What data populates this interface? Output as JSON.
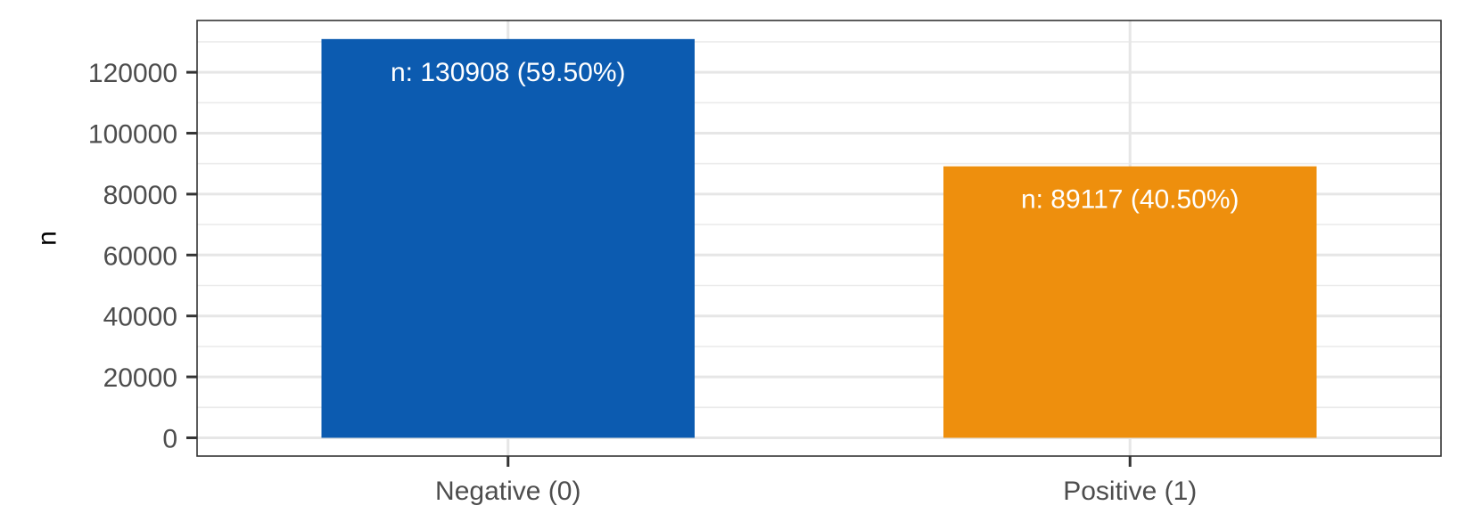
{
  "chart_data": {
    "type": "bar",
    "title": "",
    "xlabel": "",
    "ylabel": "n",
    "categories": [
      "Negative (0)",
      "Positive (1)"
    ],
    "values": [
      130908,
      89117
    ],
    "bar_labels": [
      "n: 130908 (59.50%)",
      "n: 89117 (40.50%)"
    ],
    "colors": [
      "#0C5BB0",
      "#EE8F0D"
    ],
    "ylim": [
      -6000,
      137000
    ],
    "yticks": [
      0,
      20000,
      40000,
      60000,
      80000,
      100000,
      120000
    ],
    "ytick_labels": [
      "0",
      "20000",
      "40000",
      "60000",
      "80000",
      "100000",
      "120000"
    ],
    "grid": true,
    "legend": "none"
  }
}
